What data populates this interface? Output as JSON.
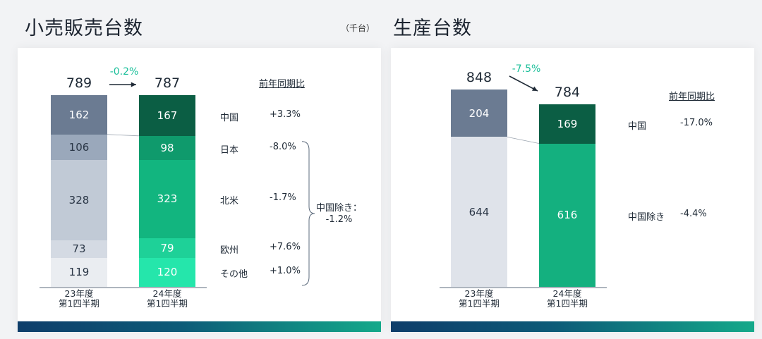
{
  "titles": {
    "left": "小売販売台数",
    "right": "生産台数",
    "unit": "（千台）"
  },
  "chart_data": [
    {
      "type": "bar",
      "stacked": true,
      "title": "小売販売台数",
      "categories": [
        "23年度 第1四半期",
        "24年度 第1四半期"
      ],
      "series": [
        {
          "name": "中国",
          "values": [
            162,
            167
          ],
          "yoy": "+3.3%"
        },
        {
          "name": "日本",
          "values": [
            106,
            98
          ],
          "yoy": "-8.0%"
        },
        {
          "name": "北米",
          "values": [
            328,
            323
          ],
          "yoy": "-1.7%"
        },
        {
          "name": "欧州",
          "values": [
            73,
            79
          ],
          "yoy": "+7.6%"
        },
        {
          "name": "その他",
          "values": [
            119,
            120
          ],
          "yoy": "+1.0%"
        }
      ],
      "totals": [
        789,
        787
      ],
      "change": "-0.2%",
      "yoy_header": "前年同期比",
      "bracket_note": "中国除き：\n-1.2%",
      "colors": {
        "old": [
          "#6b7b92",
          "#9aa8bb",
          "#c1cad6",
          "#d4dae3",
          "#eaedf1"
        ],
        "new": [
          "#0b5e44",
          "#0f9a6c",
          "#12b57f",
          "#1ed198",
          "#25e6ab"
        ]
      }
    },
    {
      "type": "bar",
      "stacked": true,
      "title": "生産台数",
      "categories": [
        "23年度 第1四半期",
        "24年度 第1四半期"
      ],
      "series": [
        {
          "name": "中国",
          "values": [
            204,
            169
          ],
          "yoy": "-17.0%"
        },
        {
          "name": "中国除き",
          "values": [
            644,
            616
          ],
          "yoy": "-4.4%"
        }
      ],
      "totals": [
        848,
        784
      ],
      "change": "-7.5%",
      "yoy_header": "前年同期比",
      "colors": {
        "old": [
          "#6b7b92",
          "#dfe3ea"
        ],
        "new": [
          "#0b5e44",
          "#14b07f"
        ]
      }
    }
  ],
  "xlabels": {
    "a": "23年度\n第1四半期",
    "b": "24年度\n第1四半期"
  }
}
